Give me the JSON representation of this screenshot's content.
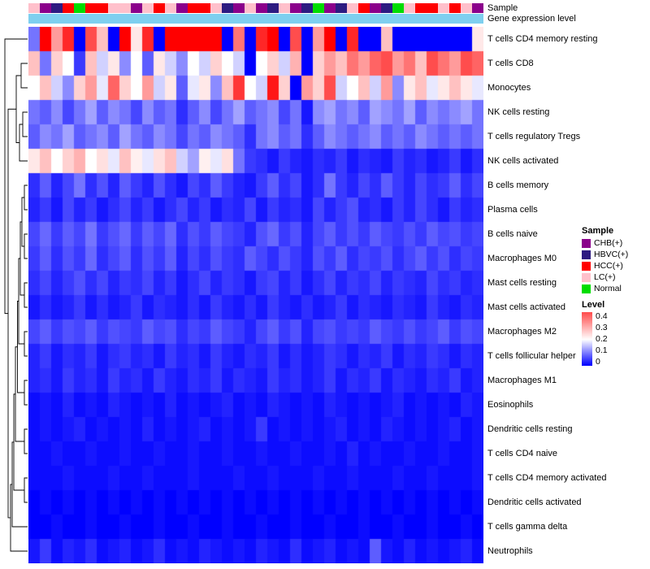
{
  "figure": {
    "background": "#FFFFFF"
  },
  "annotations": {
    "sample_label": "Sample",
    "gene_label": "Gene expression level",
    "gene_bar_color": "#7ECFEF",
    "sample_groups_by_column": [
      "LC(+)",
      "CHB(+)",
      "HBVC(+)",
      "HCC(+)",
      "Normal",
      "HCC(+)",
      "HCC(+)",
      "LC(+)",
      "LC(+)",
      "CHB(+)",
      "LC(+)",
      "HCC(+)",
      "LC(+)",
      "CHB(+)",
      "HCC(+)",
      "HCC(+)",
      "LC(+)",
      "HBVC(+)",
      "CHB(+)",
      "LC(+)",
      "CHB(+)",
      "HBVC(+)",
      "LC(+)",
      "CHB(+)",
      "HBVC(+)",
      "Normal",
      "CHB(+)",
      "HBVC(+)",
      "LC(+)",
      "HCC(+)",
      "CHB(+)",
      "HBVC(+)",
      "Normal",
      "LC(+)",
      "HCC(+)",
      "HCC(+)",
      "LC(+)",
      "HCC(+)",
      "LC(+)",
      "CHB(+)"
    ]
  },
  "legend": {
    "sample_title": "Sample",
    "sample_entries": [
      {
        "label": "CHB(+)",
        "color": "#8B008B"
      },
      {
        "label": "HBVC(+)",
        "color": "#2D1B81"
      },
      {
        "label": "HCC(+)",
        "color": "#FF0000"
      },
      {
        "label": "LC(+)",
        "color": "#FFC0CB"
      },
      {
        "label": "Normal",
        "color": "#00DD00"
      }
    ],
    "level_title": "Level",
    "level_ticks": [
      "0.4",
      "0.3",
      "0.2",
      "0.1",
      "0"
    ]
  },
  "chart_data": {
    "type": "heatmap",
    "title": "",
    "legend_position": "right",
    "column_labels_shown": false,
    "n_columns": 40,
    "rows": [
      "T cells CD4 memory resting",
      "T cells CD8",
      "Monocytes",
      "NK cells resting",
      "T cells regulatory Tregs",
      "NK cells activated",
      "B cells memory",
      "Plasma cells",
      "B cells naive",
      "Macrophages M0",
      "Mast cells resting",
      "Mast cells activated",
      "Macrophages M2",
      "T cells follicular helper",
      "Macrophages M1",
      "Eosinophils",
      "Dendritic cells resting",
      "T cells CD4 naive",
      "T cells CD4 memory activated",
      "Dendritic cells activated",
      "T cells gamma delta",
      "Neutrophils"
    ],
    "colormap": {
      "low": "#0000FF",
      "mid": "#FFFFFF",
      "high": "#FF0000",
      "vmin": 0,
      "vmid": 0.22,
      "vmax": 0.55
    },
    "values": [
      [
        0.1,
        0.55,
        0.35,
        0.5,
        0.0,
        0.45,
        0.3,
        0.0,
        0.55,
        0.25,
        0.5,
        0.0,
        0.6,
        0.6,
        0.58,
        0.6,
        0.55,
        0.0,
        0.4,
        0.0,
        0.5,
        0.55,
        0.0,
        0.45,
        0.0,
        0.35,
        0.6,
        0.0,
        0.5,
        0.0,
        0.0,
        0.3,
        0.0,
        0.0,
        0.0,
        0.0,
        0.0,
        0.0,
        0.0,
        0.25
      ],
      [
        0.3,
        0.1,
        0.28,
        0.22,
        0.05,
        0.3,
        0.18,
        0.25,
        0.12,
        0.22,
        0.08,
        0.25,
        0.18,
        0.12,
        0.22,
        0.18,
        0.28,
        0.22,
        0.18,
        0.0,
        0.22,
        0.28,
        0.18,
        0.32,
        0.0,
        0.28,
        0.35,
        0.3,
        0.4,
        0.35,
        0.42,
        0.45,
        0.35,
        0.4,
        0.3,
        0.45,
        0.4,
        0.35,
        0.45,
        0.42
      ],
      [
        0.22,
        0.3,
        0.18,
        0.12,
        0.28,
        0.35,
        0.2,
        0.42,
        0.28,
        0.22,
        0.35,
        0.18,
        0.25,
        0.08,
        0.2,
        0.25,
        0.12,
        0.3,
        0.48,
        0.22,
        0.18,
        0.52,
        0.28,
        0.0,
        0.35,
        0.28,
        0.45,
        0.18,
        0.22,
        0.3,
        0.18,
        0.35,
        0.12,
        0.25,
        0.3,
        0.2,
        0.25,
        0.3,
        0.25,
        0.2
      ],
      [
        0.1,
        0.08,
        0.12,
        0.06,
        0.1,
        0.14,
        0.08,
        0.12,
        0.1,
        0.06,
        0.12,
        0.08,
        0.1,
        0.04,
        0.08,
        0.12,
        0.06,
        0.1,
        0.14,
        0.08,
        0.1,
        0.12,
        0.06,
        0.1,
        0.02,
        0.12,
        0.14,
        0.1,
        0.12,
        0.08,
        0.14,
        0.12,
        0.1,
        0.14,
        0.08,
        0.12,
        0.1,
        0.12,
        0.14,
        0.1
      ],
      [
        0.08,
        0.12,
        0.1,
        0.14,
        0.08,
        0.1,
        0.12,
        0.08,
        0.14,
        0.1,
        0.08,
        0.12,
        0.1,
        0.06,
        0.1,
        0.08,
        0.12,
        0.1,
        0.08,
        0.04,
        0.1,
        0.12,
        0.08,
        0.1,
        0.04,
        0.08,
        0.12,
        0.1,
        0.08,
        0.1,
        0.12,
        0.08,
        0.1,
        0.08,
        0.12,
        0.1,
        0.08,
        0.1,
        0.08,
        0.1
      ],
      [
        0.25,
        0.3,
        0.22,
        0.28,
        0.32,
        0.22,
        0.26,
        0.2,
        0.3,
        0.24,
        0.2,
        0.26,
        0.3,
        0.18,
        0.14,
        0.24,
        0.2,
        0.26,
        0.1,
        0.05,
        0.04,
        0.02,
        0.05,
        0.03,
        0.02,
        0.04,
        0.03,
        0.05,
        0.02,
        0.04,
        0.03,
        0.02,
        0.05,
        0.03,
        0.04,
        0.02,
        0.03,
        0.05,
        0.02,
        0.04
      ],
      [
        0.04,
        0.08,
        0.03,
        0.06,
        0.1,
        0.04,
        0.07,
        0.03,
        0.08,
        0.05,
        0.03,
        0.07,
        0.04,
        0.02,
        0.06,
        0.04,
        0.08,
        0.05,
        0.03,
        0.02,
        0.05,
        0.08,
        0.04,
        0.06,
        0.02,
        0.04,
        0.1,
        0.05,
        0.03,
        0.06,
        0.04,
        0.08,
        0.05,
        0.03,
        0.06,
        0.04,
        0.05,
        0.08,
        0.04,
        0.06
      ],
      [
        0.03,
        0.05,
        0.02,
        0.06,
        0.03,
        0.05,
        0.02,
        0.04,
        0.06,
        0.03,
        0.05,
        0.02,
        0.04,
        0.06,
        0.03,
        0.05,
        0.02,
        0.04,
        0.03,
        0.06,
        0.02,
        0.05,
        0.03,
        0.04,
        0.02,
        0.06,
        0.03,
        0.05,
        0.07,
        0.03,
        0.04,
        0.02,
        0.05,
        0.03,
        0.06,
        0.04,
        0.02,
        0.05,
        0.03,
        0.04
      ],
      [
        0.06,
        0.09,
        0.05,
        0.08,
        0.06,
        0.1,
        0.05,
        0.07,
        0.09,
        0.05,
        0.08,
        0.06,
        0.09,
        0.04,
        0.07,
        0.05,
        0.08,
        0.06,
        0.05,
        0.03,
        0.07,
        0.09,
        0.05,
        0.07,
        0.03,
        0.06,
        0.08,
        0.05,
        0.07,
        0.05,
        0.08,
        0.06,
        0.05,
        0.07,
        0.05,
        0.08,
        0.06,
        0.07,
        0.05,
        0.06
      ],
      [
        0.05,
        0.08,
        0.04,
        0.07,
        0.05,
        0.09,
        0.04,
        0.06,
        0.08,
        0.04,
        0.07,
        0.05,
        0.08,
        0.03,
        0.06,
        0.04,
        0.07,
        0.05,
        0.04,
        0.08,
        0.06,
        0.04,
        0.07,
        0.05,
        0.03,
        0.07,
        0.05,
        0.08,
        0.04,
        0.06,
        0.05,
        0.07,
        0.04,
        0.06,
        0.08,
        0.05,
        0.07,
        0.04,
        0.06,
        0.05
      ],
      [
        0.04,
        0.06,
        0.03,
        0.05,
        0.07,
        0.04,
        0.06,
        0.03,
        0.05,
        0.04,
        0.06,
        0.03,
        0.05,
        0.02,
        0.04,
        0.06,
        0.03,
        0.05,
        0.04,
        0.02,
        0.05,
        0.06,
        0.03,
        0.05,
        0.02,
        0.04,
        0.06,
        0.03,
        0.05,
        0.04,
        0.06,
        0.03,
        0.05,
        0.04,
        0.03,
        0.06,
        0.04,
        0.05,
        0.03,
        0.04
      ],
      [
        0.02,
        0.04,
        0.02,
        0.03,
        0.05,
        0.02,
        0.04,
        0.02,
        0.03,
        0.05,
        0.02,
        0.04,
        0.03,
        0.02,
        0.04,
        0.02,
        0.05,
        0.03,
        0.02,
        0.04,
        0.02,
        0.05,
        0.03,
        0.02,
        0.04,
        0.02,
        0.03,
        0.05,
        0.02,
        0.04,
        0.03,
        0.02,
        0.04,
        0.03,
        0.02,
        0.05,
        0.03,
        0.02,
        0.04,
        0.03
      ],
      [
        0.06,
        0.08,
        0.05,
        0.07,
        0.06,
        0.08,
        0.05,
        0.07,
        0.06,
        0.05,
        0.08,
        0.06,
        0.07,
        0.04,
        0.06,
        0.05,
        0.08,
        0.06,
        0.05,
        0.03,
        0.06,
        0.08,
        0.05,
        0.07,
        0.03,
        0.06,
        0.07,
        0.05,
        0.06,
        0.05,
        0.08,
        0.06,
        0.05,
        0.07,
        0.05,
        0.06,
        0.08,
        0.05,
        0.07,
        0.06
      ],
      [
        0.03,
        0.05,
        0.02,
        0.04,
        0.03,
        0.05,
        0.02,
        0.04,
        0.05,
        0.03,
        0.04,
        0.02,
        0.05,
        0.03,
        0.04,
        0.02,
        0.05,
        0.03,
        0.02,
        0.04,
        0.03,
        0.05,
        0.02,
        0.04,
        0.02,
        0.03,
        0.05,
        0.04,
        0.02,
        0.04,
        0.03,
        0.05,
        0.02,
        0.04,
        0.03,
        0.05,
        0.04,
        0.02,
        0.04,
        0.03
      ],
      [
        0.03,
        0.04,
        0.02,
        0.05,
        0.03,
        0.04,
        0.02,
        0.05,
        0.03,
        0.04,
        0.02,
        0.05,
        0.03,
        0.02,
        0.04,
        0.03,
        0.05,
        0.02,
        0.04,
        0.03,
        0.02,
        0.05,
        0.03,
        0.04,
        0.02,
        0.03,
        0.05,
        0.02,
        0.04,
        0.03,
        0.05,
        0.02,
        0.04,
        0.03,
        0.02,
        0.04,
        0.03,
        0.05,
        0.02,
        0.03
      ],
      [
        0.01,
        0.02,
        0.01,
        0.03,
        0.01,
        0.02,
        0.01,
        0.03,
        0.02,
        0.01,
        0.02,
        0.01,
        0.03,
        0.01,
        0.02,
        0.01,
        0.02,
        0.03,
        0.01,
        0.02,
        0.01,
        0.03,
        0.02,
        0.01,
        0.02,
        0.01,
        0.03,
        0.02,
        0.01,
        0.02,
        0.01,
        0.02,
        0.03,
        0.01,
        0.02,
        0.01,
        0.02,
        0.01,
        0.03,
        0.02
      ],
      [
        0.01,
        0.02,
        0.01,
        0.02,
        0.03,
        0.01,
        0.02,
        0.01,
        0.02,
        0.01,
        0.03,
        0.01,
        0.02,
        0.01,
        0.02,
        0.03,
        0.01,
        0.02,
        0.01,
        0.02,
        0.05,
        0.01,
        0.02,
        0.01,
        0.02,
        0.01,
        0.02,
        0.03,
        0.01,
        0.02,
        0.01,
        0.03,
        0.02,
        0.01,
        0.02,
        0.01,
        0.02,
        0.03,
        0.01,
        0.02
      ],
      [
        0.01,
        0.01,
        0.02,
        0.01,
        0.01,
        0.02,
        0.01,
        0.01,
        0.02,
        0.01,
        0.01,
        0.02,
        0.01,
        0.01,
        0.02,
        0.01,
        0.01,
        0.02,
        0.01,
        0.01,
        0.02,
        0.01,
        0.01,
        0.02,
        0.01,
        0.01,
        0.02,
        0.01,
        0.03,
        0.01,
        0.02,
        0.01,
        0.01,
        0.02,
        0.01,
        0.01,
        0.02,
        0.01,
        0.01,
        0.02
      ],
      [
        0.01,
        0.01,
        0.01,
        0.02,
        0.01,
        0.01,
        0.01,
        0.02,
        0.01,
        0.01,
        0.02,
        0.01,
        0.01,
        0.01,
        0.02,
        0.01,
        0.01,
        0.01,
        0.02,
        0.01,
        0.01,
        0.02,
        0.01,
        0.01,
        0.01,
        0.02,
        0.01,
        0.01,
        0.02,
        0.01,
        0.01,
        0.01,
        0.02,
        0.01,
        0.01,
        0.02,
        0.01,
        0.01,
        0.01,
        0.02
      ],
      [
        0.0,
        0.01,
        0.0,
        0.01,
        0.0,
        0.01,
        0.0,
        0.01,
        0.0,
        0.01,
        0.0,
        0.01,
        0.0,
        0.01,
        0.0,
        0.01,
        0.0,
        0.01,
        0.0,
        0.01,
        0.0,
        0.01,
        0.0,
        0.01,
        0.0,
        0.01,
        0.0,
        0.01,
        0.0,
        0.01,
        0.0,
        0.01,
        0.0,
        0.01,
        0.0,
        0.01,
        0.0,
        0.01,
        0.0,
        0.01
      ],
      [
        0.0,
        0.0,
        0.01,
        0.0,
        0.0,
        0.01,
        0.0,
        0.0,
        0.01,
        0.0,
        0.0,
        0.01,
        0.0,
        0.0,
        0.01,
        0.0,
        0.0,
        0.01,
        0.0,
        0.0,
        0.01,
        0.0,
        0.0,
        0.01,
        0.0,
        0.0,
        0.01,
        0.0,
        0.0,
        0.01,
        0.0,
        0.0,
        0.01,
        0.0,
        0.0,
        0.01,
        0.0,
        0.0,
        0.01,
        0.0
      ],
      [
        0.02,
        0.05,
        0.01,
        0.03,
        0.02,
        0.04,
        0.01,
        0.02,
        0.03,
        0.01,
        0.02,
        0.04,
        0.01,
        0.02,
        0.01,
        0.03,
        0.02,
        0.01,
        0.02,
        0.01,
        0.03,
        0.02,
        0.01,
        0.04,
        0.01,
        0.02,
        0.03,
        0.01,
        0.02,
        0.01,
        0.08,
        0.02,
        0.01,
        0.03,
        0.01,
        0.02,
        0.01,
        0.02,
        0.03,
        0.01
      ]
    ]
  }
}
